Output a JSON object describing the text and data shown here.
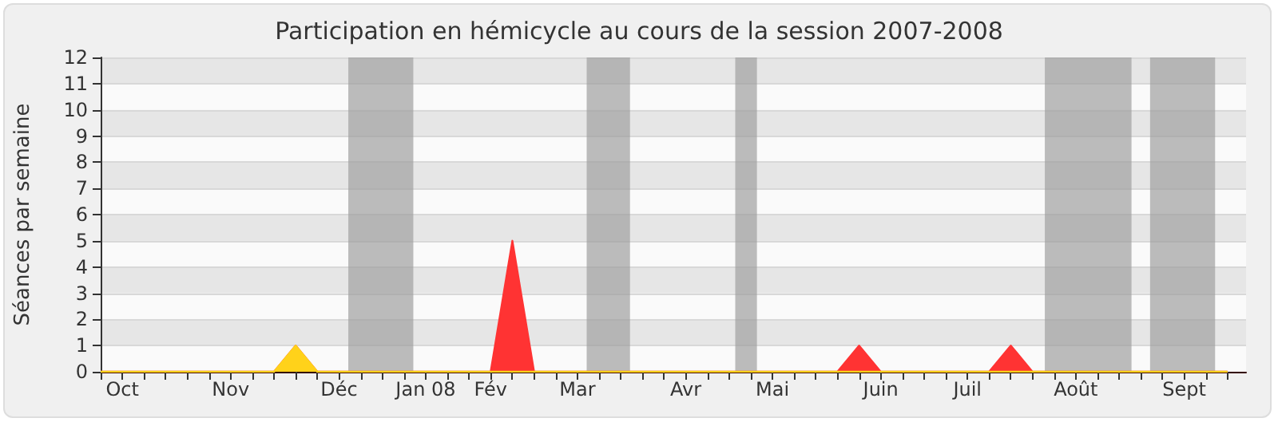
{
  "chart_data": {
    "type": "area",
    "title": "Participation en hémicycle au cours de la session 2007-2008",
    "ylabel": "Séances par semaine",
    "x": [
      "2007-10-01",
      "2007-10-08",
      "2007-10-15",
      "2007-10-22",
      "2007-10-29",
      "2007-11-05",
      "2007-11-12",
      "2007-11-19",
      "2007-11-26",
      "2007-12-03",
      "2007-12-10",
      "2007-12-17",
      "2007-12-24",
      "2007-12-31",
      "2008-01-07",
      "2008-01-14",
      "2008-01-21",
      "2008-01-28",
      "2008-02-04",
      "2008-02-11",
      "2008-02-18",
      "2008-02-25",
      "2008-03-03",
      "2008-03-10",
      "2008-03-17",
      "2008-03-24",
      "2008-03-31",
      "2008-04-07",
      "2008-04-14",
      "2008-04-21",
      "2008-04-28",
      "2008-05-05",
      "2008-05-12",
      "2008-05-19",
      "2008-05-26",
      "2008-06-02",
      "2008-06-09",
      "2008-06-16",
      "2008-06-23",
      "2008-06-30",
      "2008-07-07",
      "2008-07-14",
      "2008-07-21",
      "2008-07-28",
      "2008-08-04",
      "2008-08-11",
      "2008-08-18",
      "2008-08-25",
      "2008-09-01",
      "2008-09-08",
      "2008-09-15",
      "2008-09-22",
      "2008-09-29"
    ],
    "series": [
      {
        "color": "#ff3333",
        "values": [
          0,
          0,
          0,
          0,
          0,
          0,
          0,
          0,
          0,
          1,
          0,
          0,
          0,
          0,
          0,
          0,
          0,
          0,
          0,
          5,
          0,
          0,
          0,
          0,
          0,
          0,
          0,
          0,
          0,
          0,
          0,
          0,
          0,
          0,
          0,
          1,
          0,
          0,
          0,
          0,
          0,
          0,
          1,
          0,
          0,
          0,
          0,
          0,
          0,
          0,
          0,
          0,
          0
        ]
      },
      {
        "color": "#ffd21a",
        "values": [
          0,
          0,
          0,
          0,
          0,
          0,
          0,
          0,
          0,
          1,
          0,
          0,
          0,
          0,
          0,
          0,
          0,
          0,
          0,
          0,
          0,
          0,
          0,
          0,
          0,
          0,
          0,
          0,
          0,
          0,
          0,
          0,
          0,
          0,
          0,
          0,
          0,
          0,
          0,
          0,
          0,
          0,
          0,
          0,
          0,
          0,
          0,
          0,
          0,
          0,
          0,
          0,
          0
        ]
      }
    ],
    "xlim": [
      "2007-10-01",
      "2008-10-05"
    ],
    "xticks": [
      {
        "value": "2007-10-01",
        "label": null
      },
      {
        "value": "2007-10-08",
        "label": "Oct"
      },
      {
        "value": "2007-10-15",
        "label": null
      },
      {
        "value": "2007-10-22",
        "label": null
      },
      {
        "value": "2007-10-29",
        "label": null
      },
      {
        "value": "2007-11-05",
        "label": null
      },
      {
        "value": "2007-11-12",
        "label": "Nov"
      },
      {
        "value": "2007-11-19",
        "label": null
      },
      {
        "value": "2007-11-26",
        "label": null
      },
      {
        "value": "2007-12-03",
        "label": null
      },
      {
        "value": "2007-12-10",
        "label": null
      },
      {
        "value": "2007-12-17",
        "label": "Déc"
      },
      {
        "value": "2007-12-24",
        "label": null
      },
      {
        "value": "2007-12-31",
        "label": null
      },
      {
        "value": "2008-01-07",
        "label": null
      },
      {
        "value": "2008-01-14",
        "label": "Jan 08"
      },
      {
        "value": "2008-01-21",
        "label": null
      },
      {
        "value": "2008-01-28",
        "label": null
      },
      {
        "value": "2008-02-04",
        "label": "Fév"
      },
      {
        "value": "2008-02-11",
        "label": null
      },
      {
        "value": "2008-02-18",
        "label": null
      },
      {
        "value": "2008-02-25",
        "label": null
      },
      {
        "value": "2008-03-03",
        "label": "Mar"
      },
      {
        "value": "2008-03-10",
        "label": null
      },
      {
        "value": "2008-03-17",
        "label": null
      },
      {
        "value": "2008-03-24",
        "label": null
      },
      {
        "value": "2008-03-31",
        "label": null
      },
      {
        "value": "2008-04-07",
        "label": "Avr"
      },
      {
        "value": "2008-04-14",
        "label": null
      },
      {
        "value": "2008-04-21",
        "label": null
      },
      {
        "value": "2008-04-28",
        "label": null
      },
      {
        "value": "2008-05-05",
        "label": "Mai"
      },
      {
        "value": "2008-05-12",
        "label": null
      },
      {
        "value": "2008-05-19",
        "label": null
      },
      {
        "value": "2008-05-26",
        "label": null
      },
      {
        "value": "2008-06-02",
        "label": null
      },
      {
        "value": "2008-06-09",
        "label": "Juin"
      },
      {
        "value": "2008-06-16",
        "label": null
      },
      {
        "value": "2008-06-23",
        "label": null
      },
      {
        "value": "2008-06-30",
        "label": null
      },
      {
        "value": "2008-07-07",
        "label": "Juil"
      },
      {
        "value": "2008-07-14",
        "label": null
      },
      {
        "value": "2008-07-21",
        "label": null
      },
      {
        "value": "2008-07-28",
        "label": null
      },
      {
        "value": "2008-08-04",
        "label": null
      },
      {
        "value": "2008-08-11",
        "label": "Août"
      },
      {
        "value": "2008-08-18",
        "label": null
      },
      {
        "value": "2008-08-25",
        "label": null
      },
      {
        "value": "2008-09-01",
        "label": null
      },
      {
        "value": "2008-09-08",
        "label": null
      },
      {
        "value": "2008-09-15",
        "label": "Sept"
      },
      {
        "value": "2008-09-22",
        "label": null
      },
      {
        "value": "2008-09-29",
        "label": null
      }
    ],
    "ylim": [
      0,
      12
    ],
    "yticks": [
      0,
      1,
      2,
      3,
      4,
      5,
      6,
      7,
      8,
      9,
      10,
      11,
      12
    ],
    "bands": [
      {
        "axis": "x",
        "from": "2007-12-20",
        "to": "2008-01-10",
        "color": "#a0a0a0"
      },
      {
        "axis": "x",
        "from": "2008-03-06",
        "to": "2008-03-20",
        "color": "#a0a0a0"
      },
      {
        "axis": "x",
        "from": "2008-04-23",
        "to": "2008-04-30",
        "color": "#a0a0a0"
      },
      {
        "axis": "x",
        "from": "2008-08-01",
        "to": "2008-08-29",
        "color": "#a0a0a0"
      },
      {
        "axis": "x",
        "from": "2008-09-04",
        "to": "2008-09-25",
        "color": "#a0a0a0"
      }
    ],
    "grid": "y",
    "marker": "none",
    "line_style": "solid"
  }
}
